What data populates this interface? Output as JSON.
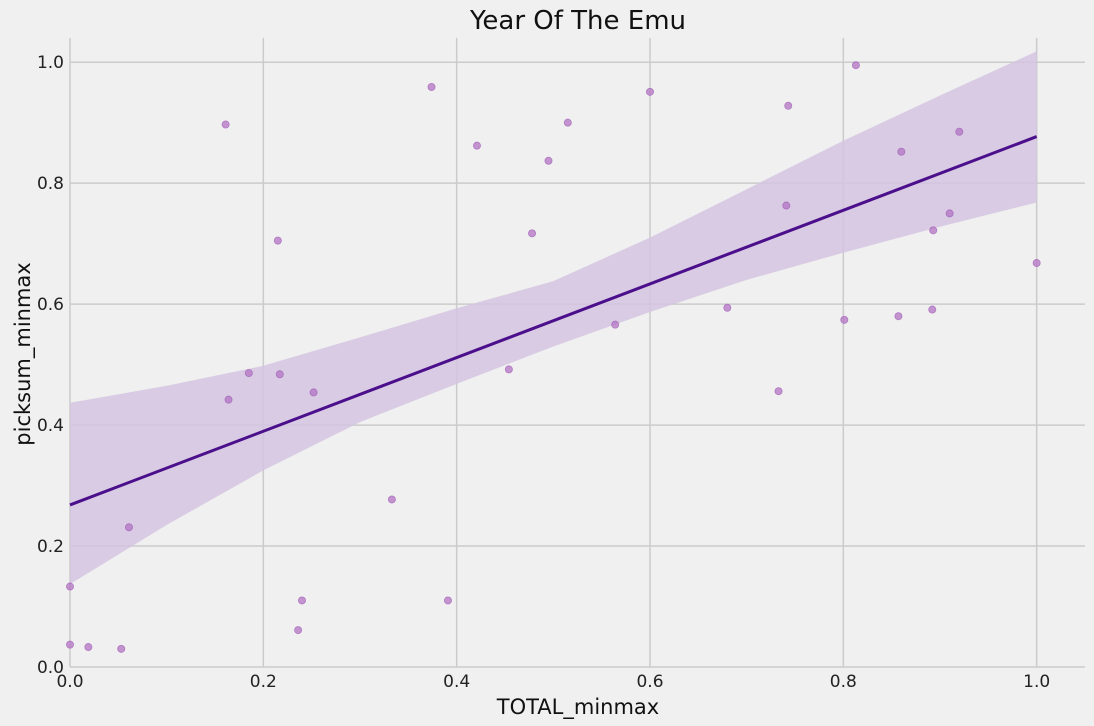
{
  "chart_data": {
    "type": "scatter",
    "title": "Year Of The Emu",
    "xlabel": "TOTAL_minmax",
    "ylabel": "picksum_minmax",
    "xlim": [
      0.0,
      1.05
    ],
    "ylim": [
      0.0,
      1.04
    ],
    "xticks": [
      "0.0",
      "0.2",
      "0.4",
      "0.6",
      "0.8",
      "1.0"
    ],
    "yticks": [
      "0.0",
      "0.2",
      "0.4",
      "0.6",
      "0.8",
      "1.0"
    ],
    "grid": true,
    "colors": {
      "background": "#f0f0f0",
      "grid": "#cbcbcb",
      "points": "#b374c4",
      "regression_line": "#4b0f8c",
      "confidence_band": "#d4c4e0"
    },
    "points": [
      {
        "x": 0.0,
        "y": 0.133
      },
      {
        "x": 0.0,
        "y": 0.037
      },
      {
        "x": 0.019,
        "y": 0.033
      },
      {
        "x": 0.053,
        "y": 0.03
      },
      {
        "x": 0.061,
        "y": 0.231
      },
      {
        "x": 0.161,
        "y": 0.897
      },
      {
        "x": 0.164,
        "y": 0.442
      },
      {
        "x": 0.185,
        "y": 0.486
      },
      {
        "x": 0.215,
        "y": 0.705
      },
      {
        "x": 0.217,
        "y": 0.484
      },
      {
        "x": 0.236,
        "y": 0.061
      },
      {
        "x": 0.24,
        "y": 0.11
      },
      {
        "x": 0.252,
        "y": 0.454
      },
      {
        "x": 0.333,
        "y": 0.277
      },
      {
        "x": 0.374,
        "y": 0.959
      },
      {
        "x": 0.391,
        "y": 0.11
      },
      {
        "x": 0.421,
        "y": 0.862
      },
      {
        "x": 0.454,
        "y": 0.492
      },
      {
        "x": 0.478,
        "y": 0.717
      },
      {
        "x": 0.495,
        "y": 0.837
      },
      {
        "x": 0.515,
        "y": 0.9
      },
      {
        "x": 0.564,
        "y": 0.566
      },
      {
        "x": 0.6,
        "y": 0.951
      },
      {
        "x": 0.68,
        "y": 0.594
      },
      {
        "x": 0.733,
        "y": 0.456
      },
      {
        "x": 0.741,
        "y": 0.763
      },
      {
        "x": 0.743,
        "y": 0.928
      },
      {
        "x": 0.801,
        "y": 0.574
      },
      {
        "x": 0.813,
        "y": 0.995
      },
      {
        "x": 0.857,
        "y": 0.58
      },
      {
        "x": 0.86,
        "y": 0.852
      },
      {
        "x": 0.892,
        "y": 0.591
      },
      {
        "x": 0.893,
        "y": 0.722
      },
      {
        "x": 0.91,
        "y": 0.75
      },
      {
        "x": 0.92,
        "y": 0.885
      },
      {
        "x": 1.0,
        "y": 0.668
      }
    ],
    "regression": {
      "x": [
        0.0,
        1.0
      ],
      "y": [
        0.268,
        0.877
      ]
    },
    "confidence_band": {
      "x": [
        0.0,
        0.1,
        0.2,
        0.3,
        0.4,
        0.5,
        0.6,
        0.7,
        0.8,
        0.9,
        1.0
      ],
      "lower": [
        0.137,
        0.235,
        0.325,
        0.405,
        0.468,
        0.53,
        0.587,
        0.64,
        0.685,
        0.728,
        0.768
      ],
      "upper": [
        0.437,
        0.465,
        0.498,
        0.545,
        0.593,
        0.638,
        0.71,
        0.79,
        0.87,
        0.945,
        1.018
      ]
    }
  }
}
